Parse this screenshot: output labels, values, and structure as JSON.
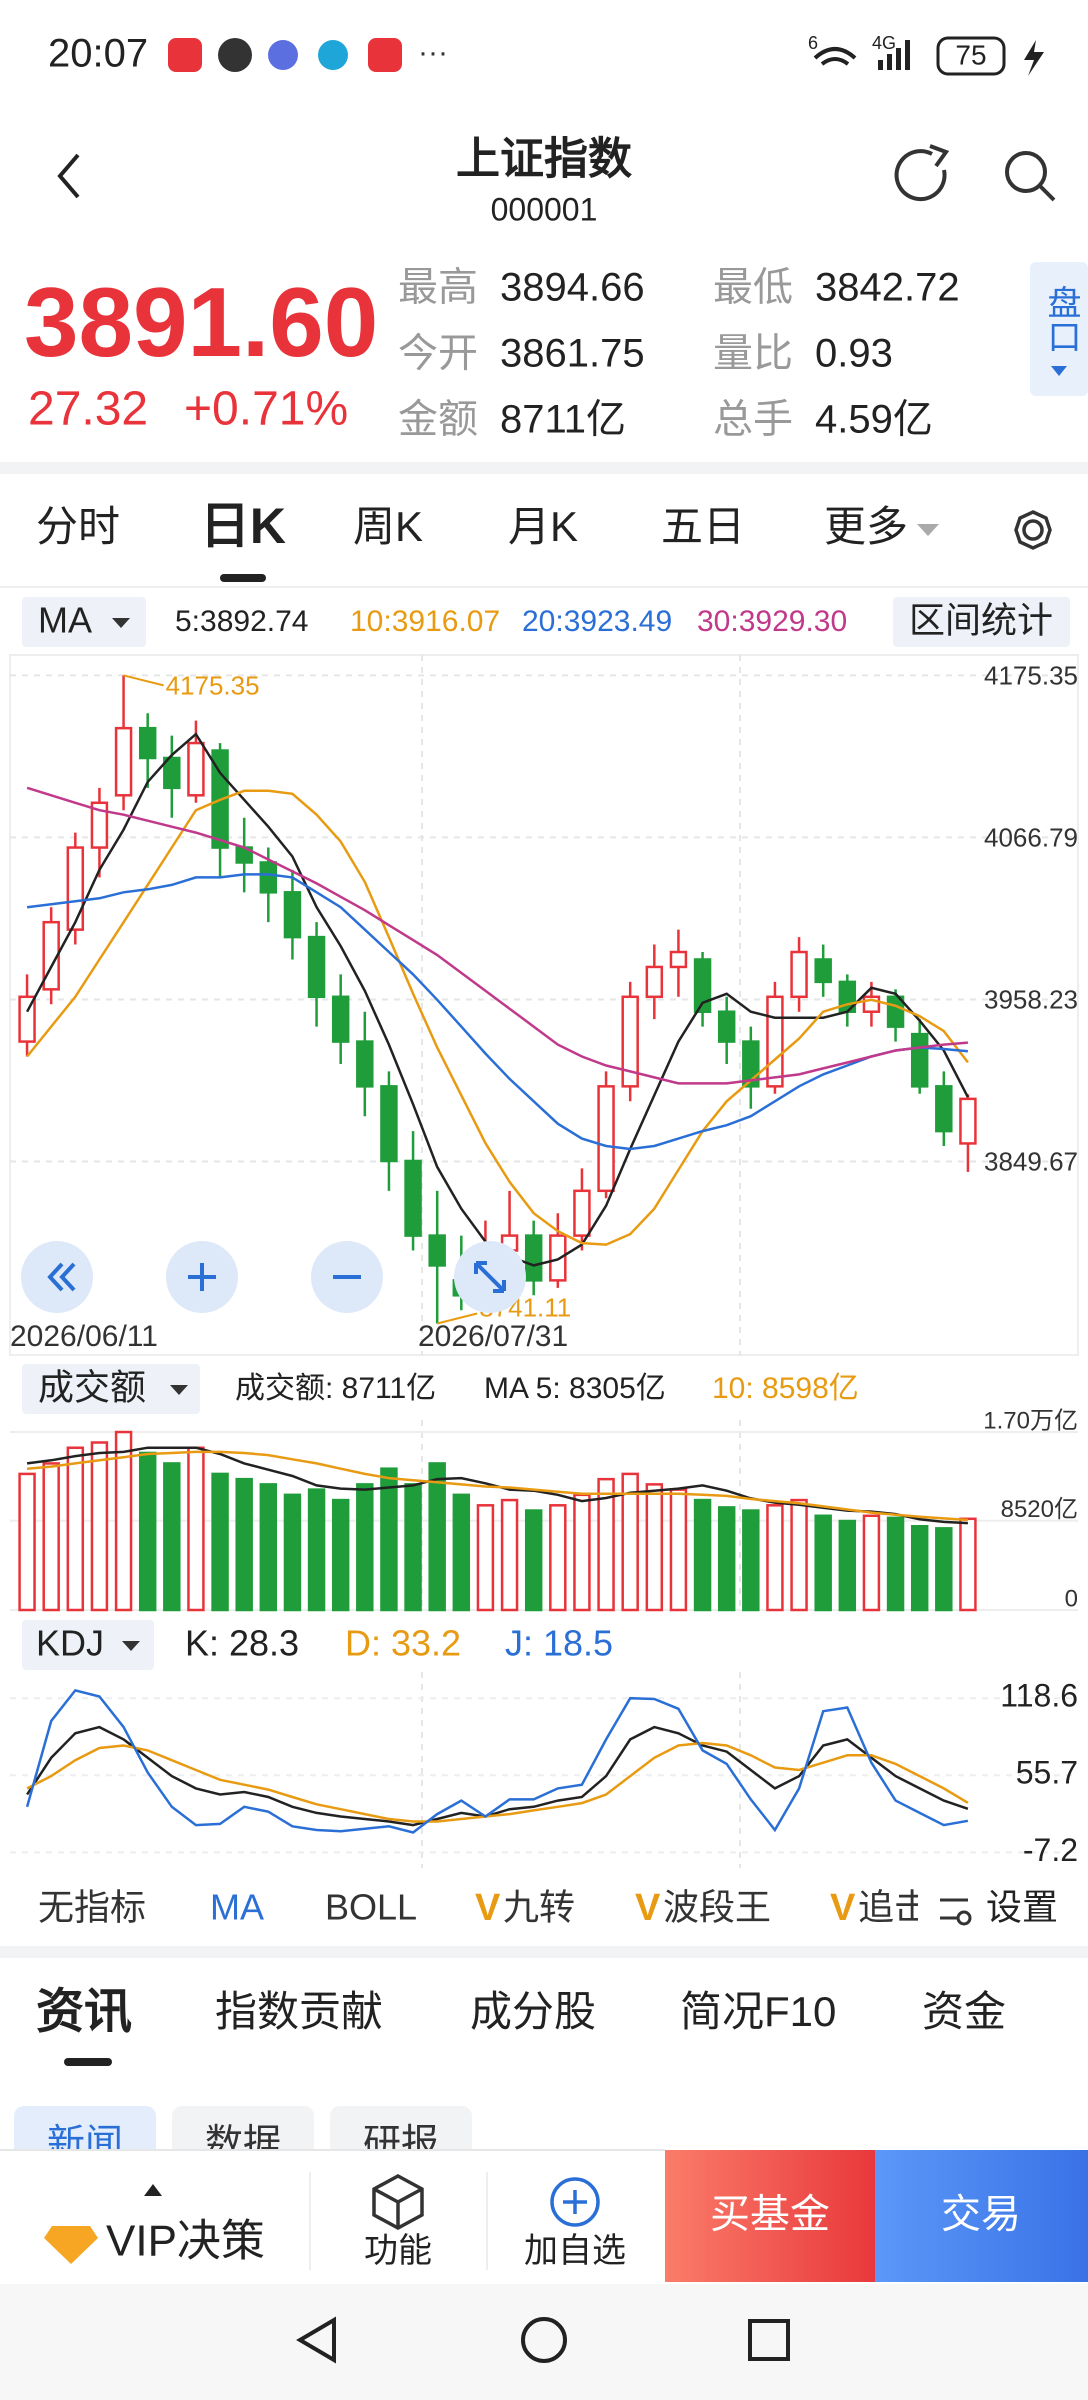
{
  "status": {
    "time": "20:07",
    "signal_labels": [
      "6",
      "4G"
    ],
    "battery": "75"
  },
  "header": {
    "title": "上证指数",
    "code": "000001"
  },
  "quote": {
    "price": "3891.60",
    "change": "27.32",
    "change_pct": "+0.71%",
    "stats": [
      {
        "label": "最高",
        "value": 3894.66
      },
      {
        "label": "最低",
        "value": 3842.72
      },
      {
        "label": "今开",
        "value": 3861.75
      },
      {
        "label": "量比",
        "value": 0.93
      },
      {
        "label": "金额",
        "value": "8711亿"
      },
      {
        "label": "总手",
        "value": "4.59亿"
      }
    ],
    "side_button": "盘口"
  },
  "period_tabs": [
    "分时",
    "日K",
    "周K",
    "月K",
    "五日",
    "更多"
  ],
  "ma_bar": {
    "selector": "MA",
    "legend": [
      "5:3892.74",
      "10:3916.07",
      "20:3923.49",
      "30:3929.30"
    ],
    "stats_button": "区间统计"
  },
  "kline": {
    "ylim": [
      3720,
      4187
    ],
    "yticks": [
      4175.35,
      4066.79,
      3958.23,
      3849.67
    ],
    "up_color": "#e8333a",
    "down_color": "#1f9d3a",
    "x_labels": [
      "2026/06/11",
      "2026/07/31"
    ],
    "max_label": 4175.35,
    "min_label": 3741.11,
    "annotation_color": "#e89b12",
    "candles": [
      [
        3930,
        3975,
        3920,
        3960
      ],
      [
        3965,
        4020,
        3955,
        4010
      ],
      [
        4005,
        4070,
        3995,
        4060
      ],
      [
        4060,
        4100,
        4040,
        4090
      ],
      [
        4095,
        4175.35,
        4085,
        4140
      ],
      [
        4140,
        4150,
        4100,
        4120
      ],
      [
        4120,
        4135,
        4080,
        4100
      ],
      [
        4095,
        4145,
        4090,
        4130
      ],
      [
        4125,
        4130,
        4040,
        4060
      ],
      [
        4060,
        4080,
        4030,
        4050
      ],
      [
        4050,
        4060,
        4010,
        4030
      ],
      [
        4030,
        4045,
        3985,
        4000
      ],
      [
        4000,
        4010,
        3940,
        3960
      ],
      [
        3960,
        3975,
        3915,
        3930
      ],
      [
        3930,
        3950,
        3880,
        3900
      ],
      [
        3900,
        3910,
        3830,
        3850
      ],
      [
        3850,
        3870,
        3790,
        3800
      ],
      [
        3800,
        3830,
        3741.11,
        3780
      ],
      [
        3770,
        3800,
        3750,
        3760
      ],
      [
        3760,
        3810,
        3755,
        3790
      ],
      [
        3790,
        3830,
        3780,
        3800
      ],
      [
        3800,
        3810,
        3760,
        3770
      ],
      [
        3770,
        3815,
        3765,
        3800
      ],
      [
        3800,
        3845,
        3790,
        3830
      ],
      [
        3830,
        3910,
        3825,
        3900
      ],
      [
        3900,
        3970,
        3890,
        3960
      ],
      [
        3960,
        3995,
        3945,
        3980
      ],
      [
        3980,
        4005,
        3960,
        3990
      ],
      [
        3985,
        3990,
        3940,
        3950
      ],
      [
        3950,
        3960,
        3915,
        3930
      ],
      [
        3930,
        3940,
        3885,
        3900
      ],
      [
        3900,
        3970,
        3895,
        3960
      ],
      [
        3960,
        4000,
        3950,
        3990
      ],
      [
        3985,
        3995,
        3960,
        3970
      ],
      [
        3970,
        3975,
        3940,
        3950
      ],
      [
        3950,
        3970,
        3940,
        3960
      ],
      [
        3960,
        3965,
        3930,
        3940
      ],
      [
        3935,
        3945,
        3895,
        3900
      ],
      [
        3900,
        3910,
        3860,
        3870
      ],
      [
        3861.75,
        3894.66,
        3842.72,
        3891.6
      ]
    ],
    "ma": [
      {
        "color": "#222222",
        "values": [
          3950,
          3980,
          4010,
          4045,
          4072,
          4104,
          4122,
          4136,
          4110,
          4092,
          4074,
          4054,
          4020,
          3994,
          3964,
          3928,
          3888,
          3846,
          3818,
          3796,
          3786,
          3780,
          3784,
          3794,
          3820,
          3858,
          3894,
          3930,
          3956,
          3962,
          3950,
          3946,
          3946,
          3946,
          3950,
          3966,
          3962,
          3944,
          3924,
          3892.74
        ]
      },
      {
        "color": "#e89b12",
        "values": [
          3920,
          3940,
          3960,
          3985,
          4010,
          4035,
          4060,
          4085,
          4092,
          4098,
          4098,
          4096,
          4082,
          4064,
          4037,
          4000,
          3962,
          3926,
          3894,
          3862,
          3836,
          3815,
          3803,
          3795,
          3794,
          3801,
          3818,
          3844,
          3870,
          3890,
          3904,
          3918,
          3932,
          3950,
          3955,
          3958,
          3954,
          3947,
          3937,
          3916.07
        ]
      },
      {
        "color": "#2a6fd6",
        "values": [
          4020,
          4022,
          4024,
          4026,
          4030,
          4032,
          4035,
          4040,
          4040,
          4042,
          4042,
          4040,
          4030,
          4020,
          4005,
          3990,
          3975,
          3958,
          3940,
          3922,
          3905,
          3890,
          3875,
          3865,
          3860,
          3858,
          3860,
          3865,
          3870,
          3874,
          3880,
          3890,
          3900,
          3908,
          3914,
          3920,
          3924,
          3926,
          3925,
          3923.49
        ]
      },
      {
        "color": "#c0398a",
        "values": [
          4100,
          4095,
          4090,
          4085,
          4082,
          4078,
          4074,
          4070,
          4065,
          4060,
          4052,
          4044,
          4036,
          4027,
          4018,
          4008,
          3998,
          3988,
          3976,
          3964,
          3952,
          3940,
          3928,
          3920,
          3914,
          3910,
          3906,
          3902,
          3902,
          3902,
          3904,
          3906,
          3908,
          3912,
          3916,
          3920,
          3924,
          3926,
          3928,
          3929.3
        ]
      }
    ]
  },
  "volume": {
    "selector": "成交额",
    "legend": [
      "成交额: 8711亿",
      "MA 5: 8305亿",
      "10: 8598亿"
    ],
    "ylim": [
      0,
      18150
    ],
    "yticks": [
      {
        "value": 17000,
        "label": "1.70万亿"
      },
      {
        "value": 8520,
        "label": "8520亿"
      },
      0
    ],
    "values": [
      13000,
      14000,
      15500,
      16000,
      17000,
      15000,
      14000,
      15500,
      13000,
      12500,
      12000,
      11000,
      11500,
      10500,
      12000,
      13500,
      12000,
      14000,
      11000,
      10000,
      10500,
      9500,
      10000,
      11000,
      12500,
      13000,
      12000,
      11500,
      10500,
      9800,
      9500,
      10000,
      10500,
      9000,
      8500,
      9000,
      8800,
      8000,
      7800,
      8711
    ],
    "ma": [
      {
        "color": "#222222",
        "values": [
          14000,
          14300,
          14700,
          15000,
          15100,
          15500,
          15500,
          15500,
          14900,
          14000,
          13400,
          12800,
          11900,
          11600,
          11500,
          11700,
          11900,
          12500,
          12600,
          12100,
          11500,
          11400,
          11000,
          10400,
          10700,
          11200,
          11400,
          11600,
          11900,
          11400,
          10660,
          10260,
          10060,
          9760,
          9500,
          9400,
          9160,
          8660,
          8420,
          8305
        ]
      },
      {
        "color": "#e89b12",
        "values": [
          13500,
          13700,
          14000,
          14300,
          14600,
          14900,
          15000,
          15100,
          15100,
          15000,
          14800,
          14400,
          14000,
          13500,
          13000,
          12600,
          12400,
          12200,
          12000,
          11800,
          11700,
          11500,
          11300,
          11100,
          11100,
          11100,
          11100,
          11100,
          11000,
          10900,
          10600,
          10400,
          10200,
          9900,
          9600,
          9300,
          9100,
          8900,
          8750,
          8598
        ]
      }
    ]
  },
  "kdj": {
    "selector": "KDJ",
    "legend": [
      "K: 28.3",
      "D: 33.2",
      "J: 18.5"
    ],
    "ylim": [
      -20,
      140
    ],
    "yticks": [
      118.6,
      55.7,
      -7.2
    ],
    "series": [
      {
        "color": "#222222",
        "values": [
          40,
          70,
          90,
          95,
          85,
          70,
          55,
          45,
          40,
          42,
          38,
          30,
          25,
          22,
          20,
          18,
          15,
          20,
          25,
          22,
          28,
          30,
          35,
          38,
          55,
          85,
          95,
          90,
          80,
          75,
          60,
          45,
          55,
          80,
          85,
          70,
          55,
          45,
          35,
          28.3
        ]
      },
      {
        "color": "#e89b12",
        "values": [
          45,
          55,
          68,
          78,
          80,
          76,
          68,
          60,
          52,
          48,
          44,
          38,
          32,
          28,
          24,
          20,
          18,
          18,
          20,
          22,
          24,
          27,
          30,
          33,
          40,
          55,
          70,
          80,
          82,
          80,
          72,
          62,
          60,
          66,
          72,
          72,
          65,
          55,
          45,
          33.2
        ]
      },
      {
        "color": "#2a6fd6",
        "values": [
          30,
          100,
          125,
          120,
          95,
          58,
          30,
          15,
          16,
          30,
          26,
          14,
          11,
          10,
          12,
          14,
          9,
          24,
          35,
          22,
          36,
          36,
          45,
          48,
          85,
          118.6,
          118,
          110,
          76,
          65,
          36,
          11,
          45,
          108,
          111,
          66,
          35,
          25,
          15,
          18.5
        ]
      }
    ]
  },
  "indicator_tabs": {
    "plain": [
      "无指标",
      "MA",
      "BOLL"
    ],
    "premium": [
      {
        "badge": "V",
        "label": "九转"
      },
      {
        "badge": "V",
        "label": "波段王"
      },
      {
        "badge": "V",
        "label": "追击"
      }
    ],
    "settings": "设置"
  },
  "info_tabs": [
    "资讯",
    "指数贡献",
    "成分股",
    "简况F10",
    "资金"
  ],
  "sub_tabs": [
    "新闻",
    "数据",
    "研报"
  ],
  "bottom_bar": {
    "vip": "VIP决策",
    "function": "功能",
    "add": "加自选",
    "buy_fund": "买基金",
    "trade": "交易"
  }
}
